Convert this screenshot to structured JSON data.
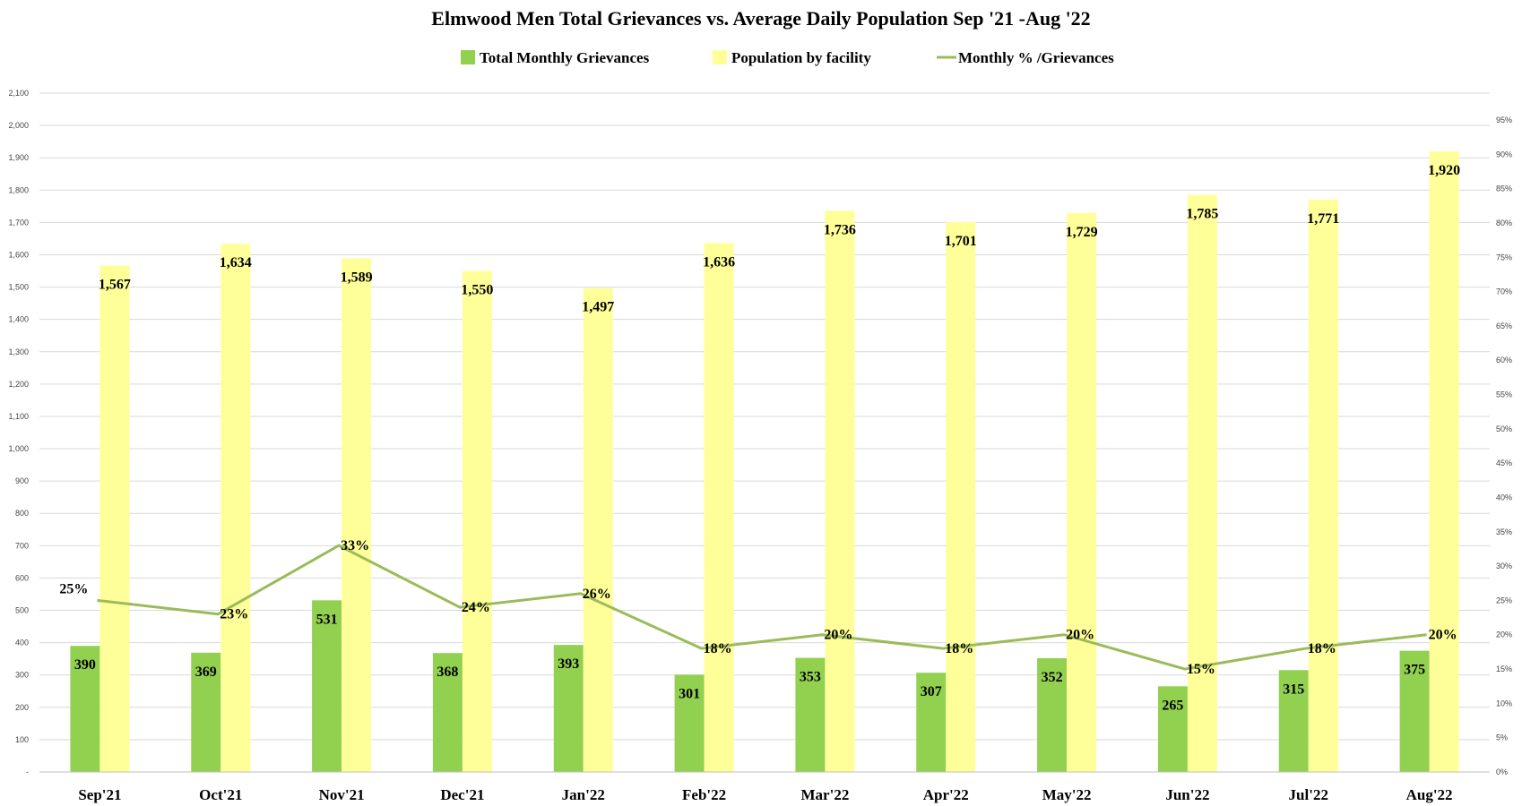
{
  "chart_data": {
    "type": "bar",
    "title": "Elmwood Men Total Grievances vs. Average Daily Population Sep '21 -Aug '22",
    "categories": [
      "Sep'21",
      "Oct'21",
      "Nov'21",
      "Dec'21",
      "Jan'22",
      "Feb'22",
      "Mar'22",
      "Apr'22",
      "May'22",
      "Jun'22",
      "Jul'22",
      "Aug'22"
    ],
    "series": [
      {
        "name": "Total Monthly Grievances",
        "kind": "bar",
        "axis": "left",
        "color": "#92d050",
        "values": [
          390,
          369,
          531,
          368,
          393,
          301,
          353,
          307,
          352,
          265,
          315,
          375
        ],
        "labels": [
          "390",
          "369",
          "531",
          "368",
          "393",
          "301",
          "353",
          "307",
          "352",
          "265",
          "315",
          "375"
        ]
      },
      {
        "name": "Population by facility",
        "kind": "bar",
        "axis": "left",
        "color": "#ffff99",
        "values": [
          1567,
          1634,
          1589,
          1550,
          1497,
          1636,
          1736,
          1701,
          1729,
          1785,
          1771,
          1920
        ],
        "labels": [
          "1,567",
          "1,634",
          "1,589",
          "1,550",
          "1,497",
          "1,636",
          "1,736",
          "1,701",
          "1,729",
          "1,785",
          "1,771",
          "1,920"
        ]
      },
      {
        "name": "Monthly % /Grievances",
        "kind": "line",
        "axis": "right",
        "color": "#9bbb59",
        "values": [
          25,
          23,
          33,
          24,
          26,
          18,
          20,
          18,
          20,
          15,
          18,
          20
        ],
        "labels": [
          "25%",
          "23%",
          "33%",
          "24%",
          "26%",
          "18%",
          "20%",
          "18%",
          "20%",
          "15%",
          "18%",
          "20%"
        ]
      }
    ],
    "y_left": {
      "ylim": [
        0,
        2100
      ],
      "ticks": [
        0,
        100,
        200,
        300,
        400,
        500,
        600,
        700,
        800,
        900,
        1000,
        1100,
        1200,
        1300,
        1400,
        1500,
        1600,
        1700,
        1800,
        1900,
        2000,
        2100
      ],
      "tick_labels": [
        "-",
        "100",
        "200",
        "300",
        "400",
        "500",
        "600",
        "700",
        "800",
        "900",
        "1,000",
        "1,100",
        "1,200",
        "1,300",
        "1,400",
        "1,500",
        "1,600",
        "1,700",
        "1,800",
        "1,900",
        "2,000",
        "2,100"
      ]
    },
    "y_right": {
      "ylim": [
        0,
        95
      ],
      "ticks": [
        0,
        5,
        10,
        15,
        20,
        25,
        30,
        35,
        40,
        45,
        50,
        55,
        60,
        65,
        70,
        75,
        80,
        85,
        90,
        95
      ],
      "tick_labels": [
        "0%",
        "5%",
        "10%",
        "15%",
        "20%",
        "25%",
        "30%",
        "35%",
        "40%",
        "45%",
        "50%",
        "55%",
        "60%",
        "65%",
        "70%",
        "75%",
        "80%",
        "85%",
        "90%",
        "95%"
      ]
    },
    "grid": true,
    "legend_position": "top-center"
  }
}
